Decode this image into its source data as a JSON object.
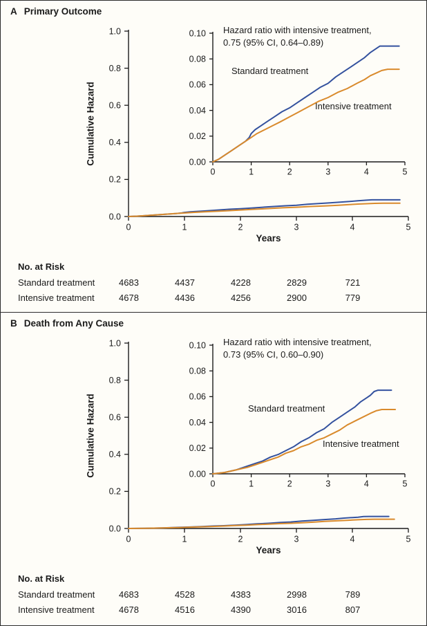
{
  "chart_data": [
    {
      "type": "line",
      "panel_letter": "A",
      "title": "Primary Outcome",
      "ylabel": "Cumulative Hazard",
      "xlabel": "Years",
      "annotation_line1": "Hazard ratio with intensive treatment,",
      "annotation_line2": "0.75 (95% CI, 0.64–0.89)",
      "main_view": {
        "xlim": [
          0,
          5
        ],
        "ylim": [
          0,
          1.0
        ],
        "x_tick_labels": [
          "0",
          "1",
          "2",
          "3",
          "4",
          "5"
        ],
        "y_tick_labels": [
          "0.0",
          "0.2",
          "0.4",
          "0.6",
          "0.8",
          "1.0"
        ]
      },
      "inset_view": {
        "xlim": [
          0,
          5
        ],
        "ylim": [
          0,
          0.1
        ],
        "x_tick_labels": [
          "0",
          "1",
          "2",
          "3",
          "4",
          "5"
        ],
        "y_tick_labels": [
          "0.00",
          "0.02",
          "0.04",
          "0.06",
          "0.08",
          "0.10"
        ]
      },
      "series": [
        {
          "name": "Standard treatment",
          "color": "#33519e",
          "points": [
            [
              0,
              0
            ],
            [
              0.15,
              0.002
            ],
            [
              0.3,
              0.005
            ],
            [
              0.5,
              0.009
            ],
            [
              0.7,
              0.013
            ],
            [
              0.85,
              0.016
            ],
            [
              0.95,
              0.019
            ],
            [
              1.0,
              0.022
            ],
            [
              1.1,
              0.025
            ],
            [
              1.25,
              0.028
            ],
            [
              1.4,
              0.031
            ],
            [
              1.6,
              0.035
            ],
            [
              1.8,
              0.039
            ],
            [
              2.0,
              0.042
            ],
            [
              2.2,
              0.046
            ],
            [
              2.4,
              0.05
            ],
            [
              2.6,
              0.054
            ],
            [
              2.8,
              0.058
            ],
            [
              3.0,
              0.061
            ],
            [
              3.2,
              0.066
            ],
            [
              3.4,
              0.07
            ],
            [
              3.6,
              0.074
            ],
            [
              3.8,
              0.078
            ],
            [
              3.95,
              0.081
            ],
            [
              4.1,
              0.085
            ],
            [
              4.25,
              0.088
            ],
            [
              4.35,
              0.09
            ],
            [
              4.85,
              0.09
            ]
          ]
        },
        {
          "name": "Intensive treatment",
          "color": "#d98a2c",
          "points": [
            [
              0,
              0
            ],
            [
              0.15,
              0.002
            ],
            [
              0.3,
              0.005
            ],
            [
              0.5,
              0.009
            ],
            [
              0.7,
              0.013
            ],
            [
              0.9,
              0.017
            ],
            [
              1.0,
              0.019
            ],
            [
              1.15,
              0.022
            ],
            [
              1.35,
              0.025
            ],
            [
              1.55,
              0.028
            ],
            [
              1.75,
              0.031
            ],
            [
              2.0,
              0.035
            ],
            [
              2.25,
              0.039
            ],
            [
              2.5,
              0.043
            ],
            [
              2.75,
              0.047
            ],
            [
              3.0,
              0.05
            ],
            [
              3.25,
              0.054
            ],
            [
              3.5,
              0.057
            ],
            [
              3.75,
              0.061
            ],
            [
              3.95,
              0.064
            ],
            [
              4.1,
              0.067
            ],
            [
              4.25,
              0.069
            ],
            [
              4.4,
              0.071
            ],
            [
              4.55,
              0.072
            ],
            [
              4.85,
              0.072
            ]
          ]
        }
      ],
      "risk": {
        "heading": "No. at Risk",
        "rows": [
          {
            "label": "Standard treatment",
            "values": [
              "4683",
              "4437",
              "4228",
              "2829",
              "721"
            ]
          },
          {
            "label": "Intensive treatment",
            "values": [
              "4678",
              "4436",
              "4256",
              "2900",
              "779"
            ]
          }
        ]
      }
    },
    {
      "type": "line",
      "panel_letter": "B",
      "title": "Death from Any Cause",
      "ylabel": "Cumulative Hazard",
      "xlabel": "Years",
      "annotation_line1": "Hazard ratio with intensive treatment,",
      "annotation_line2": "0.73 (95% CI, 0.60–0.90)",
      "main_view": {
        "xlim": [
          0,
          5
        ],
        "ylim": [
          0,
          1.0
        ],
        "x_tick_labels": [
          "0",
          "1",
          "2",
          "3",
          "4",
          "5"
        ],
        "y_tick_labels": [
          "0.0",
          "0.2",
          "0.4",
          "0.6",
          "0.8",
          "1.0"
        ]
      },
      "inset_view": {
        "xlim": [
          0,
          5
        ],
        "ylim": [
          0,
          0.1
        ],
        "x_tick_labels": [
          "0",
          "1",
          "2",
          "3",
          "4",
          "5"
        ],
        "y_tick_labels": [
          "0.00",
          "0.02",
          "0.04",
          "0.06",
          "0.08",
          "0.10"
        ]
      },
      "series": [
        {
          "name": "Standard treatment",
          "color": "#33519e",
          "points": [
            [
              0,
              0
            ],
            [
              0.3,
              0.001
            ],
            [
              0.6,
              0.003
            ],
            [
              0.9,
              0.006
            ],
            [
              1.1,
              0.008
            ],
            [
              1.3,
              0.01
            ],
            [
              1.5,
              0.013
            ],
            [
              1.7,
              0.015
            ],
            [
              1.9,
              0.018
            ],
            [
              2.1,
              0.021
            ],
            [
              2.3,
              0.025
            ],
            [
              2.5,
              0.028
            ],
            [
              2.7,
              0.032
            ],
            [
              2.9,
              0.035
            ],
            [
              3.1,
              0.04
            ],
            [
              3.3,
              0.044
            ],
            [
              3.5,
              0.048
            ],
            [
              3.7,
              0.052
            ],
            [
              3.85,
              0.056
            ],
            [
              4.0,
              0.059
            ],
            [
              4.1,
              0.061
            ],
            [
              4.2,
              0.064
            ],
            [
              4.3,
              0.065
            ],
            [
              4.65,
              0.065
            ]
          ]
        },
        {
          "name": "Intensive treatment",
          "color": "#d98a2c",
          "points": [
            [
              0,
              0
            ],
            [
              0.3,
              0.001
            ],
            [
              0.6,
              0.003
            ],
            [
              0.9,
              0.005
            ],
            [
              1.1,
              0.007
            ],
            [
              1.3,
              0.009
            ],
            [
              1.5,
              0.011
            ],
            [
              1.7,
              0.013
            ],
            [
              1.9,
              0.016
            ],
            [
              2.1,
              0.018
            ],
            [
              2.3,
              0.021
            ],
            [
              2.5,
              0.023
            ],
            [
              2.7,
              0.026
            ],
            [
              2.9,
              0.028
            ],
            [
              3.1,
              0.031
            ],
            [
              3.3,
              0.034
            ],
            [
              3.5,
              0.038
            ],
            [
              3.7,
              0.041
            ],
            [
              3.9,
              0.044
            ],
            [
              4.1,
              0.047
            ],
            [
              4.25,
              0.049
            ],
            [
              4.4,
              0.05
            ],
            [
              4.75,
              0.05
            ]
          ]
        }
      ],
      "risk": {
        "heading": "No. at Risk",
        "rows": [
          {
            "label": "Standard treatment",
            "values": [
              "4683",
              "4528",
              "4383",
              "2998",
              "789"
            ]
          },
          {
            "label": "Intensive treatment",
            "values": [
              "4678",
              "4516",
              "4390",
              "3016",
              "807"
            ]
          }
        ]
      }
    }
  ]
}
